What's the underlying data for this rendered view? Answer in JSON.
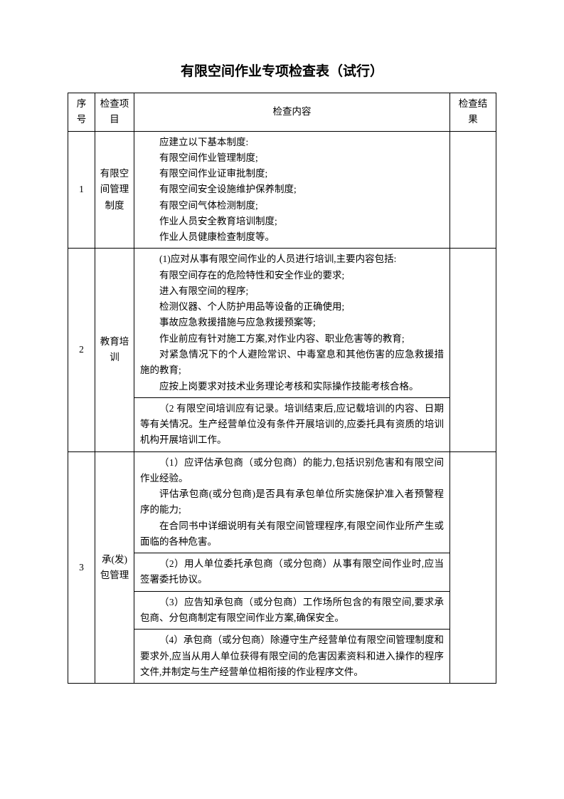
{
  "title": "有限空间作业专项检查表（试行）",
  "headers": {
    "seq": "序号",
    "item": "检查项目",
    "content": "检查内容",
    "result": "检查结果"
  },
  "rows": [
    {
      "seq": "1",
      "item": "有限空间管理制度",
      "contents": [
        {
          "lines": [
            {
              "t": "应建立以下基本制度:",
              "indent": 1
            },
            {
              "t": "有限空间作业管理制度;",
              "indent": 2
            },
            {
              "t": "有限空间作业证审批制度;",
              "indent": 2
            },
            {
              "t": "有限空间安全设施维护保养制度;",
              "indent": 2
            },
            {
              "t": "有限空间气体检测制度;",
              "indent": 2
            },
            {
              "t": "作业人员安全教育培训制度;",
              "indent": 2
            },
            {
              "t": "作业人员健康检查制度等。",
              "indent": 2
            }
          ]
        }
      ]
    },
    {
      "seq": "2",
      "item": "教育培训",
      "contents": [
        {
          "lines": [
            {
              "t": "(1)应对从事有限空间作业的人员进行培训,主要内容包括:",
              "indent": 1
            },
            {
              "t": "有限空间存在的危险特性和安全作业的要求;",
              "indent": 2
            },
            {
              "t": "进入有限空间的程序;",
              "indent": 2
            },
            {
              "t": "检测仪器、个人防护用品等设备的正确使用;",
              "indent": 2
            },
            {
              "t": "事故应急救援措施与应急救援预案等;",
              "indent": 2
            },
            {
              "t": "作业前应有针对施工方案,对作业内容、职业危害等的教育;",
              "indent": 2
            },
            {
              "t": "对紧急情况下的个人避险常识、中毒窒息和其他伤害的应急救援措施的教育;",
              "indent": 2
            },
            {
              "t": "应按上岗要求对技术业务理论考核和实际操作技能考核合格。",
              "indent": 2
            }
          ]
        },
        {
          "lines": [
            {
              "t": "（2 有限空间培训应有记录。培训结束后,应记载培训的内容、日期等有关情况。生产经营单位没有条件开展培训的,应委托具有资质的培训机构开展培训工作。",
              "indent": 1
            }
          ]
        }
      ]
    },
    {
      "seq": "3",
      "item": "承(发)包管理",
      "contents": [
        {
          "lines": [
            {
              "t": "（1）应评估承包商（或分包商）的能力,包括识别危害和有限空间作业经验。",
              "indent": 1
            },
            {
              "t": "评估承包商(或分包商)是否具有承包单位所实施保护准入者预警程序的能力;",
              "indent": 2
            },
            {
              "t": "在合同书中详细说明有关有限空间管理程序,有限空间作业所产生或面临的各种危害。",
              "indent": 2
            }
          ]
        },
        {
          "lines": [
            {
              "t": "（2）用人单位委托承包商（或分包商）从事有限空间作业时,应当签署委托协议。",
              "indent": 1
            }
          ]
        },
        {
          "lines": [
            {
              "t": "（3）应告知承包商（或分包商）工作场所包含的有限空间,要求承包商、分包商制定有限空间作业方案,确保安全。",
              "indent": 1
            }
          ]
        },
        {
          "lines": [
            {
              "t": "（4）承包商（或分包商）除遵守生产经营单位有限空间管理制度和要求外,应当从用人单位获得有限空间的危害因素资料和进入操作的程序文件,并制定与生产经营单位相衔接的作业程序文件。",
              "indent": 1
            }
          ]
        }
      ]
    }
  ]
}
